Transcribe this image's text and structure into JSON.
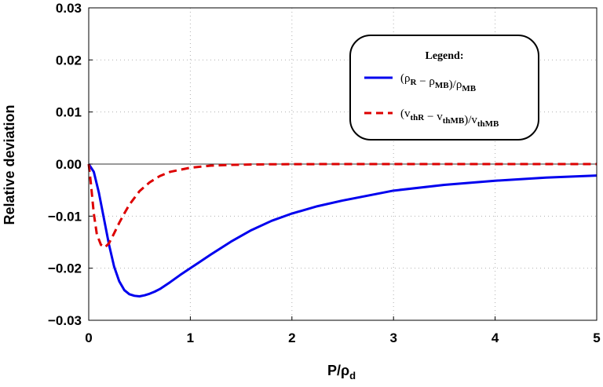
{
  "chart_data": {
    "type": "line",
    "title": "",
    "xlabel": "P/ρd",
    "ylabel": "Relative deviation",
    "xlim": [
      0,
      5
    ],
    "ylim": [
      -0.03,
      0.03
    ],
    "x_ticks": [
      0,
      1,
      2,
      3,
      4,
      5
    ],
    "x_tick_labels": [
      "0",
      "1",
      "2",
      "3",
      "4",
      "5"
    ],
    "y_ticks": [
      -0.03,
      -0.02,
      -0.01,
      0,
      0.01,
      0.02,
      0.03
    ],
    "y_tick_labels": [
      "−0.03",
      "−0.02",
      "−0.01",
      "0.00",
      "0.01",
      "0.02",
      "0.03"
    ],
    "grid": true,
    "legend_position": "top-right",
    "legend_title": "Legend:",
    "series": [
      {
        "name": "(ρR − ρMB)/ρMB",
        "color": "#0000ee",
        "style": "solid",
        "x": [
          0,
          0.05,
          0.1,
          0.15,
          0.2,
          0.25,
          0.3,
          0.35,
          0.4,
          0.45,
          0.5,
          0.55,
          0.6,
          0.65,
          0.7,
          0.8,
          0.9,
          1.0,
          1.2,
          1.4,
          1.6,
          1.8,
          2.0,
          2.25,
          2.5,
          3.0,
          3.5,
          4.0,
          4.5,
          5.0
        ],
        "y": [
          0,
          -0.0015,
          -0.0055,
          -0.0105,
          -0.0155,
          -0.0197,
          -0.0225,
          -0.0242,
          -0.025,
          -0.0253,
          -0.0254,
          -0.0252,
          -0.0249,
          -0.0245,
          -0.024,
          -0.0227,
          -0.0213,
          -0.02,
          -0.0174,
          -0.0149,
          -0.0127,
          -0.0109,
          -0.0095,
          -0.0081,
          -0.007,
          -0.0051,
          -0.004,
          -0.0032,
          -0.0026,
          -0.0022
        ]
      },
      {
        "name": "(vthR − vthMB)/vthMB",
        "color": "#dd0000",
        "style": "dashed",
        "x": [
          0,
          0.02,
          0.05,
          0.08,
          0.12,
          0.16,
          0.2,
          0.25,
          0.3,
          0.35,
          0.4,
          0.5,
          0.6,
          0.7,
          0.8,
          1.0,
          1.2,
          1.4,
          1.6,
          1.8,
          2.0,
          2.5,
          3.0,
          4.0,
          5.0
        ],
        "y": [
          0,
          -0.0035,
          -0.0095,
          -0.0135,
          -0.0155,
          -0.016,
          -0.0152,
          -0.0133,
          -0.0113,
          -0.0095,
          -0.0078,
          -0.0052,
          -0.0035,
          -0.0023,
          -0.0015,
          -0.0007,
          -0.0003,
          -0.00015,
          -8e-05,
          -4e-05,
          -2e-05,
          0,
          0,
          0,
          0
        ]
      }
    ]
  }
}
